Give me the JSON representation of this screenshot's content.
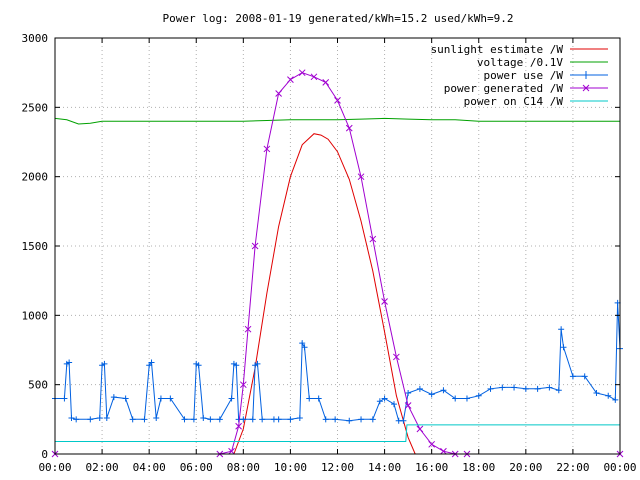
{
  "chart_data": {
    "type": "line",
    "title": "Power log: 2008-01-19 generated/kWh=15.2 used/kWh=9.2",
    "xlabel": "",
    "ylabel": "",
    "xlim": [
      0,
      24
    ],
    "ylim": [
      0,
      3000
    ],
    "x_ticks": [
      "00:00",
      "02:00",
      "04:00",
      "06:00",
      "08:00",
      "10:00",
      "12:00",
      "14:00",
      "16:00",
      "18:00",
      "20:00",
      "22:00",
      "00:00"
    ],
    "y_ticks": [
      "0",
      "500",
      "1000",
      "1500",
      "2000",
      "2500",
      "3000"
    ],
    "grid": true,
    "legend_position": "top-right",
    "series": [
      {
        "name": "sunlight estimate /W",
        "color": "#e00000",
        "marker": "none",
        "x": [
          7.6,
          8.0,
          8.5,
          9.0,
          9.5,
          10.0,
          10.5,
          11.0,
          11.3,
          11.6,
          12.0,
          12.5,
          13.0,
          13.5,
          14.0,
          14.5,
          15.0,
          15.3
        ],
        "y": [
          0,
          180,
          620,
          1160,
          1640,
          2000,
          2230,
          2310,
          2300,
          2270,
          2180,
          1980,
          1680,
          1320,
          880,
          420,
          120,
          0
        ]
      },
      {
        "name": "voltage /0.1V",
        "color": "#00a000",
        "marker": "none",
        "x": [
          0.0,
          0.5,
          1.0,
          1.5,
          2.0,
          3.0,
          4.0,
          5.0,
          6.0,
          7.0,
          8.0,
          9.0,
          10.0,
          11.0,
          12.0,
          13.0,
          14.0,
          15.0,
          16.0,
          17.0,
          18.0,
          19.0,
          20.0,
          21.0,
          22.0,
          23.0,
          24.0
        ],
        "y": [
          2420,
          2410,
          2380,
          2385,
          2400,
          2400,
          2400,
          2400,
          2400,
          2400,
          2400,
          2405,
          2410,
          2410,
          2410,
          2415,
          2420,
          2415,
          2410,
          2410,
          2400,
          2400,
          2400,
          2400,
          2400,
          2400,
          2400
        ]
      },
      {
        "name": "power use /W",
        "color": "#0060e0",
        "marker": "plus",
        "x": [
          0.0,
          0.4,
          0.5,
          0.6,
          0.7,
          0.9,
          1.5,
          1.9,
          2.0,
          2.1,
          2.2,
          2.5,
          3.0,
          3.3,
          3.8,
          4.0,
          4.1,
          4.3,
          4.5,
          4.9,
          5.5,
          5.9,
          6.0,
          6.1,
          6.3,
          6.6,
          7.0,
          7.5,
          7.6,
          7.7,
          7.8,
          8.0,
          8.4,
          8.5,
          8.6,
          8.8,
          9.3,
          9.5,
          10.0,
          10.4,
          10.5,
          10.6,
          10.8,
          11.2,
          11.5,
          11.9,
          12.5,
          13.0,
          13.5,
          13.8,
          14.0,
          14.4,
          14.6,
          14.8,
          15.0,
          15.5,
          16.0,
          16.5,
          17.0,
          17.5,
          18.0,
          18.5,
          19.0,
          19.5,
          20.0,
          20.5,
          21.0,
          21.4,
          21.5,
          21.6,
          22.0,
          22.5,
          23.0,
          23.5,
          23.8,
          23.9,
          24.0
        ],
        "y": [
          400,
          400,
          650,
          660,
          260,
          250,
          250,
          260,
          640,
          650,
          260,
          410,
          400,
          250,
          250,
          640,
          660,
          260,
          400,
          400,
          250,
          250,
          650,
          640,
          260,
          250,
          250,
          400,
          650,
          640,
          250,
          250,
          250,
          640,
          650,
          250,
          250,
          250,
          250,
          260,
          800,
          770,
          400,
          400,
          250,
          250,
          240,
          250,
          250,
          380,
          400,
          360,
          240,
          240,
          440,
          470,
          430,
          460,
          400,
          400,
          420,
          470,
          480,
          480,
          470,
          470,
          480,
          460,
          900,
          770,
          560,
          560,
          440,
          420,
          390,
          1090,
          760
        ]
      },
      {
        "name": "power generated /W",
        "color": "#a000d0",
        "marker": "x",
        "x": [
          0.0,
          7.0,
          7.5,
          7.8,
          8.0,
          8.2,
          8.5,
          9.0,
          9.5,
          10.0,
          10.5,
          11.0,
          11.5,
          12.0,
          12.5,
          13.0,
          13.5,
          14.0,
          14.5,
          15.0,
          15.5,
          16.0,
          16.5,
          17.0,
          17.5,
          24.0
        ],
        "y": [
          0,
          0,
          20,
          200,
          500,
          900,
          1500,
          2200,
          2600,
          2700,
          2750,
          2720,
          2680,
          2550,
          2350,
          2000,
          1550,
          1100,
          700,
          350,
          180,
          70,
          20,
          0,
          0,
          0
        ]
      },
      {
        "name": "power on C14 /W",
        "color": "#00c8c8",
        "marker": "none",
        "x": [
          0.0,
          14.9,
          14.95,
          24.0
        ],
        "y": [
          90,
          90,
          210,
          210
        ]
      }
    ]
  }
}
